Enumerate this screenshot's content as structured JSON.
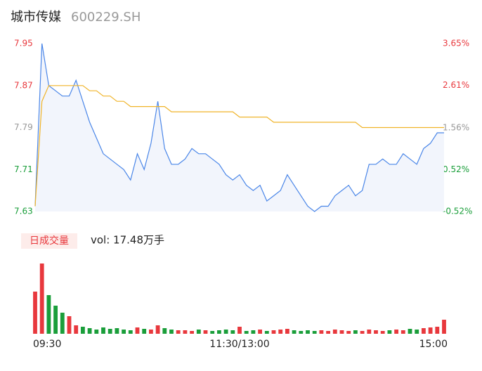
{
  "header": {
    "title": "城市传媒",
    "code": "600229.SH"
  },
  "chart_data": [
    {
      "type": "line",
      "categories": [
        "09:30",
        null,
        null,
        null,
        null,
        null,
        null,
        null,
        null,
        null,
        null,
        null,
        null,
        null,
        null,
        null,
        null,
        null,
        null,
        null,
        null,
        null,
        null,
        null,
        null,
        null,
        null,
        null,
        null,
        null,
        "11:30/13:00",
        null,
        null,
        null,
        null,
        null,
        null,
        null,
        null,
        null,
        null,
        null,
        null,
        null,
        null,
        null,
        null,
        null,
        null,
        null,
        null,
        null,
        null,
        null,
        null,
        null,
        null,
        null,
        null,
        null,
        "15:00"
      ],
      "series": [
        {
          "color": "#4a86e8",
          "values": [
            7.64,
            7.95,
            7.87,
            7.86,
            7.85,
            7.85,
            7.88,
            7.84,
            7.8,
            7.77,
            7.74,
            7.73,
            7.72,
            7.71,
            7.69,
            7.74,
            7.71,
            7.76,
            7.84,
            7.75,
            7.72,
            7.72,
            7.73,
            7.75,
            7.74,
            7.74,
            7.73,
            7.72,
            7.7,
            7.69,
            7.7,
            7.68,
            7.67,
            7.68,
            7.65,
            7.66,
            7.67,
            7.7,
            7.68,
            7.66,
            7.64,
            7.63,
            7.64,
            7.64,
            7.66,
            7.67,
            7.68,
            7.66,
            7.67,
            7.72,
            7.72,
            7.73,
            7.72,
            7.72,
            7.74,
            7.73,
            7.72,
            7.75,
            7.76,
            7.78,
            7.78
          ]
        },
        {
          "color": "#f0b429",
          "values": [
            7.64,
            7.84,
            7.87,
            7.87,
            7.87,
            7.87,
            7.87,
            7.87,
            7.86,
            7.86,
            7.85,
            7.85,
            7.84,
            7.84,
            7.83,
            7.83,
            7.83,
            7.83,
            7.83,
            7.83,
            7.82,
            7.82,
            7.82,
            7.82,
            7.82,
            7.82,
            7.82,
            7.82,
            7.82,
            7.82,
            7.81,
            7.81,
            7.81,
            7.81,
            7.81,
            7.8,
            7.8,
            7.8,
            7.8,
            7.8,
            7.8,
            7.8,
            7.8,
            7.8,
            7.8,
            7.8,
            7.8,
            7.8,
            7.79,
            7.79,
            7.79,
            7.79,
            7.79,
            7.79,
            7.79,
            7.79,
            7.79,
            7.79,
            7.79,
            7.79,
            7.79
          ]
        }
      ],
      "ylim": [
        7.63,
        7.95
      ],
      "yticks": [
        7.63,
        7.71,
        7.79,
        7.87,
        7.95
      ],
      "y2lim": [
        -0.52,
        3.65
      ],
      "y2ticks": [
        {
          "value": -0.52,
          "label": "-0.52%"
        },
        {
          "value": 0.52,
          "label": "0.52%"
        },
        {
          "value": 1.56,
          "label": "1.56%"
        },
        {
          "value": 2.61,
          "label": "2.61%"
        },
        {
          "value": 3.65,
          "label": "3.65%"
        }
      ]
    },
    {
      "type": "bar",
      "label": "日成交量",
      "summary": "vol: 17.48万手",
      "up_color": "#e8383d",
      "down_color": "#1a9e3a",
      "values": [
        60,
        100,
        55,
        40,
        30,
        25,
        12,
        10,
        8,
        6,
        9,
        7,
        8,
        6,
        5,
        9,
        7,
        6,
        12,
        8,
        6,
        5,
        5,
        4,
        6,
        5,
        4,
        5,
        6,
        5,
        10,
        4,
        5,
        6,
        4,
        5,
        6,
        7,
        5,
        4,
        5,
        4,
        5,
        4,
        6,
        5,
        4,
        5,
        4,
        6,
        5,
        4,
        5,
        6,
        5,
        7,
        6,
        8,
        9,
        10,
        20
      ]
    }
  ]
}
